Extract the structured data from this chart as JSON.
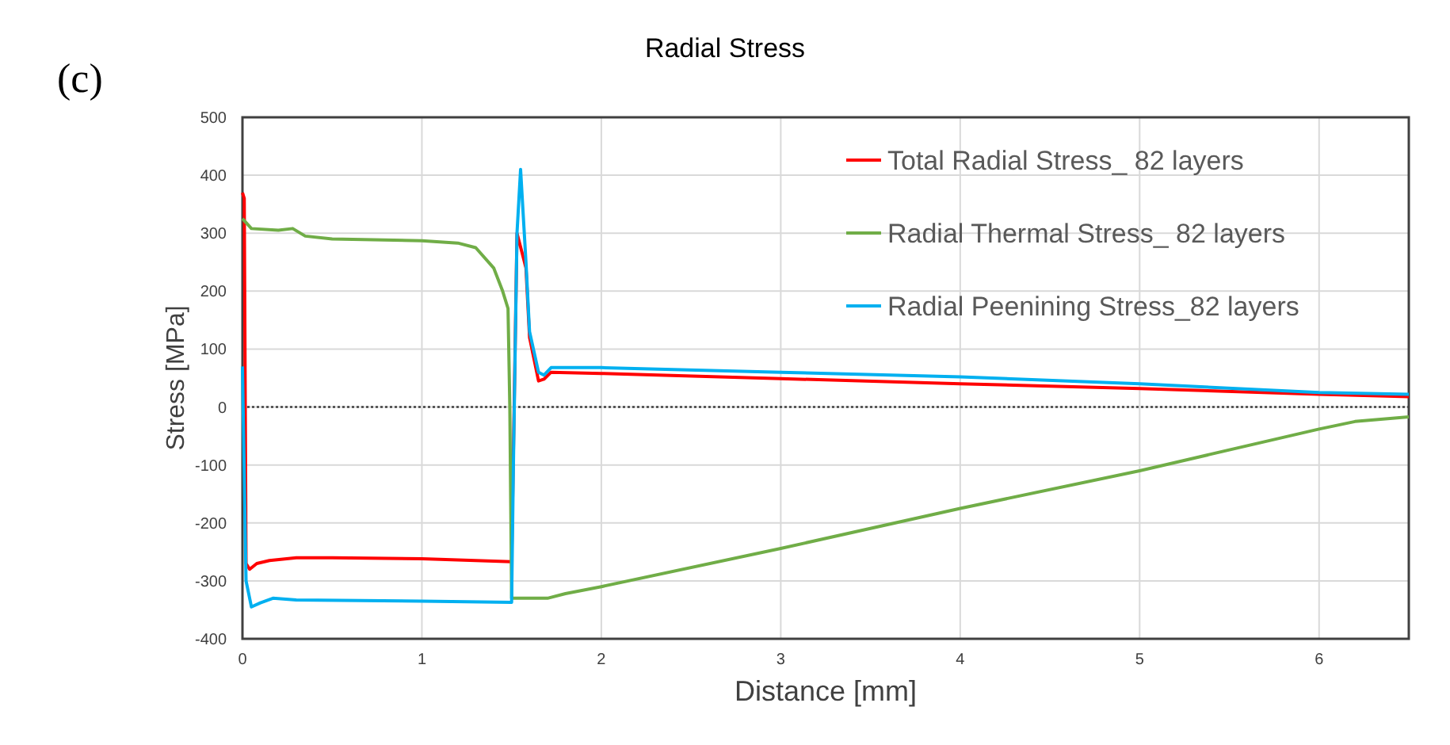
{
  "chart_data": {
    "type": "line",
    "title": "Radial Stress",
    "xlabel": "Distance [mm]",
    "ylabel": "Stress [MPa]",
    "annotations": [
      "(c)"
    ],
    "xlim": [
      0,
      6.5
    ],
    "xticks": [
      0,
      1,
      2,
      3,
      4,
      5,
      6
    ],
    "ylim": [
      -400,
      500
    ],
    "yticks": [
      -400,
      -300,
      -200,
      -100,
      0,
      100,
      200,
      300,
      400,
      500
    ],
    "grid": true,
    "legend": "top right",
    "line_style": "solid",
    "ref_lines": [
      {
        "axis": "y",
        "value": 0,
        "color": "#404040",
        "line_style": "dotted"
      }
    ],
    "series": [
      {
        "name": "Total Radial Stress_ 82 layers",
        "color": "#ff0000",
        "x": [
          0,
          0.01,
          0.02,
          0.04,
          0.08,
          0.15,
          0.3,
          0.5,
          1,
          1.5,
          1.53,
          1.58,
          1.6,
          1.65,
          1.68,
          1.72,
          2,
          3,
          4,
          5,
          6,
          6.5
        ],
        "values": [
          370,
          360,
          -270,
          -280,
          -270,
          -265,
          -260,
          -260,
          -262,
          -267,
          300,
          240,
          120,
          45,
          48,
          60,
          58,
          49,
          40,
          32,
          22,
          18
        ]
      },
      {
        "name": "Radial Thermal Stress_ 82 layers",
        "color": "#70ad47",
        "x": [
          0,
          0.05,
          0.2,
          0.28,
          0.35,
          0.5,
          1,
          1.2,
          1.3,
          1.4,
          1.45,
          1.48,
          1.49,
          1.5,
          1.7,
          1.8,
          2,
          3,
          4,
          5,
          6,
          6.2,
          6.5
        ],
        "values": [
          325,
          308,
          305,
          308,
          295,
          290,
          287,
          283,
          275,
          240,
          200,
          170,
          0,
          -330,
          -330,
          -322,
          -310,
          -244,
          -175,
          -110,
          -38,
          -25,
          -17
        ]
      },
      {
        "name": "Radial Peenining Stress_82 layers",
        "color": "#00b0f0",
        "x": [
          0,
          0.02,
          0.05,
          0.1,
          0.17,
          0.3,
          1,
          1.5,
          1.51,
          1.53,
          1.55,
          1.58,
          1.6,
          1.65,
          1.68,
          1.72,
          2,
          3,
          4,
          5,
          6,
          6.5
        ],
        "values": [
          70,
          -300,
          -345,
          -338,
          -330,
          -333,
          -335,
          -337,
          -100,
          300,
          410,
          250,
          130,
          60,
          55,
          68,
          68,
          60,
          52,
          40,
          25,
          22
        ]
      }
    ]
  }
}
